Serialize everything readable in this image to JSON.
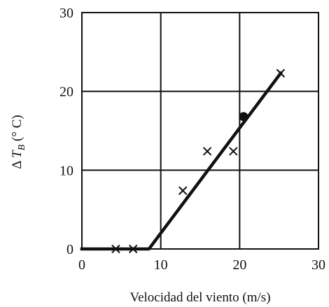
{
  "chart_data": {
    "type": "scatter",
    "xlabel": "Velocidad del viento (m/s)",
    "ylabel_parts": {
      "prefix": "Δ ",
      "var": "T",
      "sub": "B",
      "suffix": " (° C)"
    },
    "xlim": [
      0,
      30
    ],
    "ylim": [
      0,
      30
    ],
    "xticks": [
      0,
      10,
      20,
      30
    ],
    "yticks": [
      0,
      10,
      20,
      30
    ],
    "grid": true,
    "series": [
      {
        "marker": "x",
        "points": [
          [
            4.3,
            0
          ],
          [
            6.5,
            0
          ],
          [
            12.8,
            7.4
          ],
          [
            15.9,
            12.4
          ],
          [
            19.2,
            12.4
          ],
          [
            25.2,
            22.3
          ]
        ]
      },
      {
        "marker": "dot",
        "points": [
          [
            20.5,
            16.8
          ]
        ]
      }
    ],
    "fit_line": [
      [
        0,
        0
      ],
      [
        8.5,
        0
      ],
      [
        25.2,
        22.3
      ]
    ],
    "colors": {
      "ink": "#111111",
      "background": "#ffffff"
    }
  }
}
